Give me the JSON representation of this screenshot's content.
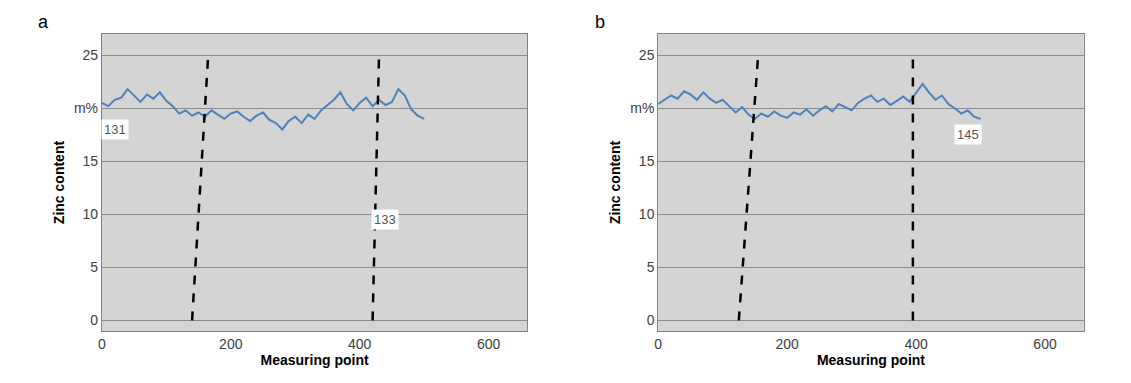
{
  "chart_data": [
    {
      "type": "line",
      "title": "a",
      "x_label": "Measuring point",
      "y_label": "Zinc content",
      "x": [
        0,
        10,
        20,
        30,
        40,
        50,
        60,
        70,
        80,
        90,
        100,
        110,
        120,
        130,
        140,
        150,
        160,
        170,
        180,
        190,
        200,
        210,
        220,
        230,
        240,
        250,
        260,
        270,
        280,
        290,
        300,
        310,
        320,
        330,
        340,
        350,
        360,
        370,
        380,
        390,
        400,
        410,
        420,
        430,
        440,
        450,
        460,
        470,
        480,
        490,
        500
      ],
      "series": [
        {
          "color": "#4f81bd",
          "values": [
            20.5,
            20.2,
            20.8,
            21.0,
            21.8,
            21.2,
            20.6,
            21.3,
            20.9,
            21.5,
            20.7,
            20.2,
            19.5,
            19.8,
            19.3,
            19.6,
            19.2,
            19.8,
            19.4,
            19.0,
            19.5,
            19.7,
            19.2,
            18.8,
            19.3,
            19.6,
            18.9,
            18.6,
            18.0,
            18.8,
            19.2,
            18.6,
            19.4,
            19.0,
            19.8,
            20.3,
            20.8,
            21.5,
            20.4,
            19.8,
            20.5,
            21.0,
            20.2,
            20.8,
            20.3,
            20.6,
            21.8,
            21.2,
            19.9,
            19.3,
            19.0
          ]
        }
      ],
      "boundaries": [
        {
          "x": [
            140,
            165
          ],
          "y": [
            0,
            25
          ]
        },
        {
          "x": [
            420,
            430
          ],
          "y": [
            0,
            25
          ]
        }
      ],
      "annotations": [
        {
          "text": "131",
          "x": 20,
          "y": 18
        },
        {
          "text": "133",
          "x": 440,
          "y": 9.5
        }
      ],
      "xlim": [
        0,
        660
      ],
      "xticks": [
        0,
        200,
        400,
        600
      ],
      "ylim": [
        -1,
        27
      ],
      "yticks": [
        0,
        5,
        10,
        15,
        {
          "value": 20,
          "label": "m%"
        },
        25
      ],
      "grid": true
    },
    {
      "type": "line",
      "title": "b",
      "x_label": "Measuring point",
      "y_label": "Zinc content",
      "x": [
        0,
        10,
        20,
        30,
        40,
        50,
        60,
        70,
        80,
        90,
        100,
        110,
        120,
        130,
        140,
        150,
        160,
        170,
        180,
        190,
        200,
        210,
        220,
        230,
        240,
        250,
        260,
        270,
        280,
        290,
        300,
        310,
        320,
        330,
        340,
        350,
        360,
        370,
        380,
        390,
        400,
        410,
        420,
        430,
        440,
        450,
        460,
        470,
        480,
        490,
        500
      ],
      "series": [
        {
          "color": "#4f81bd",
          "values": [
            20.4,
            20.8,
            21.2,
            20.9,
            21.6,
            21.3,
            20.8,
            21.5,
            20.9,
            20.5,
            20.8,
            20.2,
            19.6,
            20.1,
            19.4,
            19.0,
            19.5,
            19.2,
            19.7,
            19.3,
            19.1,
            19.6,
            19.4,
            19.9,
            19.3,
            19.8,
            20.2,
            19.7,
            20.4,
            20.1,
            19.8,
            20.5,
            20.9,
            21.2,
            20.6,
            20.9,
            20.3,
            20.7,
            21.1,
            20.6,
            21.4,
            22.3,
            21.5,
            20.8,
            21.2,
            20.4,
            20.0,
            19.5,
            19.8,
            19.2,
            19.0
          ]
        }
      ],
      "boundaries": [
        {
          "x": [
            125,
            155
          ],
          "y": [
            0,
            25
          ]
        },
        {
          "x": [
            395,
            395
          ],
          "y": [
            0,
            25
          ]
        }
      ],
      "annotations": [
        {
          "text": "145",
          "x": 480,
          "y": 17.5
        }
      ],
      "xlim": [
        0,
        660
      ],
      "xticks": [
        0,
        200,
        400,
        600
      ],
      "ylim": [
        -1,
        27
      ],
      "yticks": [
        0,
        5,
        10,
        15,
        {
          "value": 20,
          "label": "m%"
        },
        25
      ],
      "grid": true
    }
  ]
}
